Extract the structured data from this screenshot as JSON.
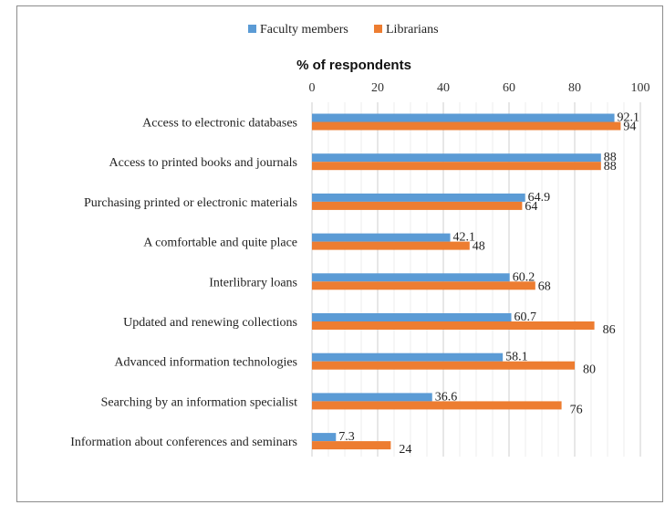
{
  "chart_data": {
    "type": "bar",
    "orientation": "horizontal",
    "title": "",
    "xlabel": "% of respondents",
    "ylabel": "",
    "xlim": [
      0,
      100
    ],
    "xticks": [
      0,
      20,
      40,
      60,
      80,
      100
    ],
    "grid": true,
    "legend_position": "top",
    "categories": [
      "Access to electronic databases",
      "Access to printed books and journals",
      "Purchasing printed or electronic materials",
      "A comfortable and quite place",
      "Interlibrary loans",
      "Updated and renewing collections",
      "Advanced information technologies",
      "Searching by an information specialist",
      "Information about conferences and seminars"
    ],
    "series": [
      {
        "name": "Faculty members",
        "color": "#5b9bd5",
        "values": [
          92.1,
          88,
          64.9,
          42.1,
          60.2,
          60.7,
          58.1,
          36.6,
          7.3
        ]
      },
      {
        "name": "Librarians",
        "color": "#ed7d31",
        "values": [
          94,
          88,
          64,
          48,
          68,
          86,
          80,
          76,
          24
        ]
      }
    ]
  }
}
